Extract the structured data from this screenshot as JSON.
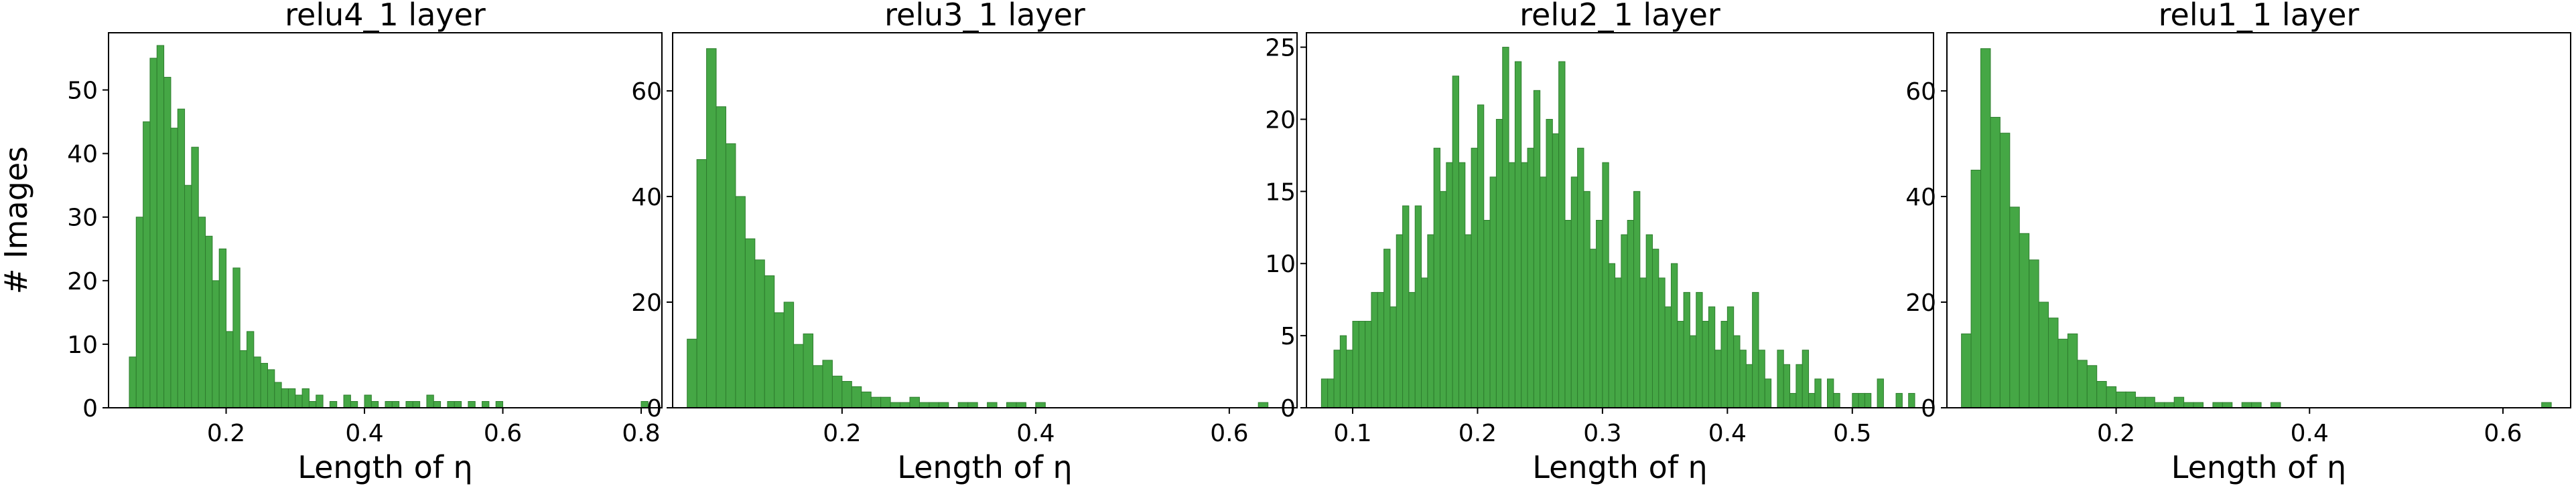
{
  "chart_data": [
    {
      "type": "histogram",
      "title": "relu4_1 layer",
      "xlabel": "Length of η",
      "ylabel": "# Images",
      "color": "#45a745",
      "bins": [
        0.06,
        0.07,
        0.08,
        0.09,
        0.1,
        0.11,
        0.12,
        0.13,
        0.14,
        0.15,
        0.16,
        0.17,
        0.18,
        0.19,
        0.2,
        0.21,
        0.22,
        0.23,
        0.24,
        0.25,
        0.26,
        0.27,
        0.28,
        0.29,
        0.3,
        0.31,
        0.32,
        0.33,
        0.34,
        0.35,
        0.36,
        0.37,
        0.38,
        0.39,
        0.4,
        0.41,
        0.42,
        0.43,
        0.44,
        0.45,
        0.46,
        0.47,
        0.48,
        0.49,
        0.5,
        0.51,
        0.52,
        0.53,
        0.54,
        0.55,
        0.56,
        0.57,
        0.58,
        0.59,
        0.6,
        0.61,
        0.62,
        0.63,
        0.64,
        0.65,
        0.66,
        0.67,
        0.68,
        0.69,
        0.7,
        0.71,
        0.72,
        0.73,
        0.74,
        0.75,
        0.76,
        0.77,
        0.78,
        0.79,
        0.8,
        0.81,
        0.82
      ],
      "values": [
        8,
        30,
        45,
        55,
        57,
        52,
        44,
        47,
        35,
        41,
        30,
        27,
        20,
        25,
        12,
        22,
        9,
        12,
        8,
        7,
        6,
        4,
        3,
        3,
        2,
        3,
        1,
        2,
        0,
        1,
        0,
        2,
        1,
        0,
        2,
        1,
        0,
        1,
        1,
        0,
        1,
        1,
        0,
        2,
        1,
        0,
        1,
        1,
        0,
        1,
        0,
        1,
        0,
        1,
        0,
        0,
        0,
        0,
        0,
        0,
        0,
        0,
        0,
        0,
        0,
        0,
        0,
        0,
        0,
        0,
        0,
        0,
        0,
        0,
        1,
        0
      ],
      "xlim": [
        0.03,
        0.83
      ],
      "ylim": [
        0,
        59
      ],
      "xticks": [
        0.2,
        0.4,
        0.6,
        0.8
      ],
      "yticks": [
        0,
        10,
        20,
        30,
        40,
        50
      ]
    },
    {
      "type": "histogram",
      "title": "relu3_1 layer",
      "xlabel": "Length of η",
      "color": "#45a745",
      "bins": [
        0.04,
        0.05,
        0.06,
        0.07,
        0.08,
        0.09,
        0.1,
        0.11,
        0.12,
        0.13,
        0.14,
        0.15,
        0.16,
        0.17,
        0.18,
        0.19,
        0.2,
        0.21,
        0.22,
        0.23,
        0.24,
        0.25,
        0.26,
        0.27,
        0.28,
        0.29,
        0.3,
        0.31,
        0.32,
        0.33,
        0.34,
        0.35,
        0.36,
        0.37,
        0.38,
        0.39,
        0.4,
        0.41,
        0.42,
        0.43,
        0.44,
        0.45,
        0.46,
        0.47,
        0.48,
        0.49,
        0.5,
        0.51,
        0.52,
        0.53,
        0.54,
        0.55,
        0.56,
        0.57,
        0.58,
        0.59,
        0.6,
        0.61,
        0.62,
        0.63,
        0.64,
        0.65
      ],
      "values": [
        13,
        47,
        68,
        57,
        50,
        40,
        32,
        28,
        25,
        18,
        20,
        12,
        14,
        8,
        9,
        6,
        5,
        4,
        3,
        2,
        2,
        1,
        1,
        2,
        1,
        1,
        1,
        0,
        1,
        1,
        0,
        1,
        0,
        1,
        1,
        0,
        1,
        0,
        0,
        0,
        0,
        0,
        0,
        0,
        0,
        0,
        0,
        0,
        0,
        0,
        0,
        0,
        0,
        0,
        0,
        0,
        0,
        0,
        0,
        1,
        0
      ],
      "xlim": [
        0.025,
        0.67
      ],
      "ylim": [
        0,
        71
      ],
      "xticks": [
        0.2,
        0.4,
        0.6
      ],
      "yticks": [
        0,
        20,
        40,
        60
      ]
    },
    {
      "type": "histogram",
      "title": "relu2_1 layer",
      "xlabel": "Length of η",
      "color": "#45a745",
      "bins": [
        0.075,
        0.08,
        0.085,
        0.09,
        0.095,
        0.1,
        0.105,
        0.11,
        0.115,
        0.12,
        0.125,
        0.13,
        0.135,
        0.14,
        0.145,
        0.15,
        0.155,
        0.16,
        0.165,
        0.17,
        0.175,
        0.18,
        0.185,
        0.19,
        0.195,
        0.2,
        0.205,
        0.21,
        0.215,
        0.22,
        0.225,
        0.23,
        0.235,
        0.24,
        0.245,
        0.25,
        0.255,
        0.26,
        0.265,
        0.27,
        0.275,
        0.28,
        0.285,
        0.29,
        0.295,
        0.3,
        0.305,
        0.31,
        0.315,
        0.32,
        0.325,
        0.33,
        0.335,
        0.34,
        0.345,
        0.35,
        0.355,
        0.36,
        0.365,
        0.37,
        0.375,
        0.38,
        0.385,
        0.39,
        0.395,
        0.4,
        0.405,
        0.41,
        0.415,
        0.42,
        0.425,
        0.43,
        0.435,
        0.44,
        0.445,
        0.45,
        0.455,
        0.46,
        0.465,
        0.47,
        0.475,
        0.48,
        0.485,
        0.49,
        0.495,
        0.5,
        0.505,
        0.51,
        0.515,
        0.52,
        0.525,
        0.53,
        0.535,
        0.54,
        0.545,
        0.55,
        0.555
      ],
      "values": [
        2,
        2,
        4,
        5,
        4,
        6,
        6,
        6,
        8,
        8,
        11,
        7,
        12,
        14,
        8,
        14,
        9,
        12,
        18,
        15,
        17,
        23,
        17,
        12,
        18,
        21,
        13,
        16,
        20,
        25,
        17,
        24,
        17,
        18,
        22,
        16,
        20,
        19,
        24,
        13,
        16,
        18,
        15,
        11,
        13,
        17,
        10,
        9,
        12,
        13,
        15,
        9,
        12,
        11,
        9,
        7,
        10,
        6,
        8,
        5,
        8,
        6,
        7,
        4,
        6,
        7,
        5,
        4,
        3,
        8,
        4,
        2,
        0,
        4,
        3,
        1,
        3,
        4,
        1,
        2,
        0,
        2,
        1,
        0,
        0,
        1,
        1,
        1,
        0,
        2,
        0,
        0,
        1,
        0,
        1,
        0
      ],
      "xlim": [
        0.063,
        0.565
      ],
      "ylim": [
        0,
        26
      ],
      "xticks": [
        0.1,
        0.2,
        0.3,
        0.4,
        0.5
      ],
      "yticks": [
        0,
        5,
        10,
        15,
        20,
        25
      ]
    },
    {
      "type": "histogram",
      "title": "relu1_1 layer",
      "xlabel": "Length of η",
      "color": "#45a745",
      "bins": [
        0.04,
        0.05,
        0.06,
        0.07,
        0.08,
        0.09,
        0.1,
        0.11,
        0.12,
        0.13,
        0.14,
        0.15,
        0.16,
        0.17,
        0.18,
        0.19,
        0.2,
        0.21,
        0.22,
        0.23,
        0.24,
        0.25,
        0.26,
        0.27,
        0.28,
        0.29,
        0.3,
        0.31,
        0.32,
        0.33,
        0.34,
        0.35,
        0.36,
        0.37,
        0.38,
        0.39,
        0.4,
        0.41,
        0.42,
        0.43,
        0.44,
        0.45,
        0.46,
        0.47,
        0.48,
        0.49,
        0.5,
        0.51,
        0.52,
        0.53,
        0.54,
        0.55,
        0.56,
        0.57,
        0.58,
        0.59,
        0.6,
        0.61,
        0.62,
        0.63,
        0.64,
        0.65,
        0.66
      ],
      "values": [
        14,
        45,
        68,
        55,
        52,
        38,
        33,
        28,
        20,
        17,
        13,
        14,
        9,
        8,
        5,
        4,
        3,
        3,
        2,
        2,
        1,
        1,
        2,
        1,
        1,
        0,
        1,
        1,
        0,
        1,
        1,
        0,
        1,
        0,
        0,
        0,
        0,
        0,
        0,
        0,
        0,
        0,
        0,
        0,
        0,
        0,
        0,
        0,
        0,
        0,
        0,
        0,
        0,
        0,
        0,
        0,
        0,
        0,
        0,
        0,
        1,
        0
      ],
      "xlim": [
        0.025,
        0.67
      ],
      "ylim": [
        0,
        71
      ],
      "xticks": [
        0.2,
        0.4,
        0.6
      ],
      "yticks": [
        0,
        20,
        40,
        60
      ]
    }
  ]
}
